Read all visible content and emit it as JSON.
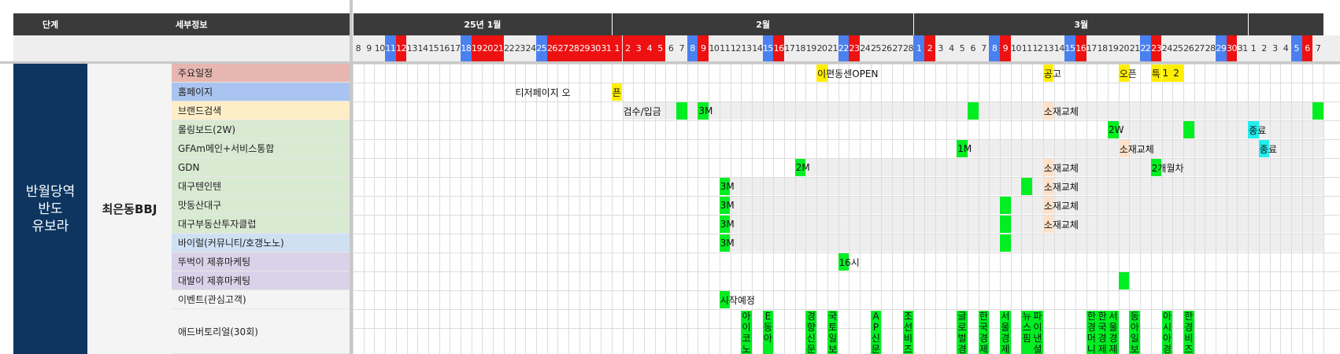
{
  "header": {
    "stage_label": "단계",
    "detail_label": "세부정보",
    "months": [
      {
        "label": "25년 1월",
        "startDay": 8,
        "endDay": 31
      },
      {
        "label": "2월",
        "startDay": 1,
        "endDay": 28
      },
      {
        "label": "3월",
        "startDay": 1,
        "endDay": 31
      },
      {
        "label": "",
        "startDay": 1,
        "endDay": 7
      }
    ]
  },
  "day_colors": {
    "blue": "#4a80f0",
    "red": "#ee1111",
    "green": "#00ee22",
    "yellow": "#ffee00",
    "cyan": "#22eeee",
    "peach": "#ffe0c8",
    "span_gray": "#eeeeee"
  },
  "weekend_map": {
    "blue": [
      3,
      10,
      17,
      24,
      31,
      38,
      45,
      52,
      59,
      66,
      73,
      80,
      87
    ],
    "red": [
      4,
      11,
      18,
      19,
      20,
      21,
      22,
      23,
      24,
      25,
      26,
      27,
      28,
      32,
      39,
      46,
      53,
      60,
      67,
      74,
      81,
      88,
      12,
      13
    ]
  },
  "stage": {
    "text": "반월당역\n반도\n유보라"
  },
  "detail": {
    "text": "최은동BBJ"
  },
  "rows": [
    {
      "label": "주요일정",
      "bg": "#e8b6b0"
    },
    {
      "label": "홈페이지",
      "bg": "#a9c4f0"
    },
    {
      "label": "브랜드검색",
      "bg": "#fdeec8"
    },
    {
      "label": "롤링보드(2W)",
      "bg": "#d9ead3"
    },
    {
      "label": "GFAm메인+서비스통합",
      "bg": "#d9ead3"
    },
    {
      "label": "GDN",
      "bg": "#d9ead3"
    },
    {
      "label": "대구텐인텐",
      "bg": "#d9ead3"
    },
    {
      "label": "맛동산대구",
      "bg": "#d9ead3"
    },
    {
      "label": "대구부동산투자클럽",
      "bg": "#d9ead3"
    },
    {
      "label": "바이럴(커뮤니티/호갱노노)",
      "bg": "#cfe0f3"
    },
    {
      "label": "뚜벅이 제휴마케팅",
      "bg": "#d9d2e9"
    },
    {
      "label": "대발이 제휴마케팅",
      "bg": "#d9d2e9"
    },
    {
      "label": "이벤트(관심고객)",
      "bg": "#f4f4f4"
    },
    {
      "label": "애드버토리얼(30회)",
      "bg": "#f4f4f4"
    }
  ],
  "spans": [
    {
      "row": 2,
      "from": 25,
      "to": 90
    },
    {
      "row": 3,
      "from": 70,
      "to": 90
    },
    {
      "row": 4,
      "from": 56,
      "to": 90
    },
    {
      "row": 5,
      "from": 41,
      "to": 90
    },
    {
      "row": 6,
      "from": 34,
      "to": 90
    },
    {
      "row": 7,
      "from": 34,
      "to": 90
    },
    {
      "row": 8,
      "from": 34,
      "to": 90
    },
    {
      "row": 9,
      "from": 34,
      "to": 90
    }
  ],
  "cells": [
    {
      "row": 0,
      "day": 43,
      "color": "yellow",
      "text": "이편동센OPEN"
    },
    {
      "row": 0,
      "day": 64,
      "color": "yellow",
      "text": "공고"
    },
    {
      "row": 0,
      "day": 71,
      "color": "yellow",
      "text": "오픈"
    },
    {
      "row": 0,
      "day": 74,
      "color": "yellow",
      "text": "특"
    },
    {
      "row": 0,
      "day": 75,
      "color": "yellow",
      "text": "1"
    },
    {
      "row": 0,
      "day": 76,
      "color": "yellow",
      "text": "2"
    },
    {
      "row": 1,
      "day": 15,
      "color": "",
      "text": "티저페이지 오"
    },
    {
      "row": 1,
      "day": 24,
      "color": "yellow",
      "text": "픈"
    },
    {
      "row": 2,
      "day": 25,
      "color": "",
      "text": "검수/입금"
    },
    {
      "row": 2,
      "day": 30,
      "color": "green",
      "text": ""
    },
    {
      "row": 2,
      "day": 32,
      "color": "green",
      "text": "3M"
    },
    {
      "row": 2,
      "day": 57,
      "color": "green",
      "text": ""
    },
    {
      "row": 2,
      "day": 64,
      "color": "peach",
      "text": "소재교체"
    },
    {
      "row": 2,
      "day": 89,
      "color": "green",
      "text": ""
    },
    {
      "row": 3,
      "day": 70,
      "color": "green",
      "text": "2W"
    },
    {
      "row": 3,
      "day": 77,
      "color": "green",
      "text": ""
    },
    {
      "row": 3,
      "day": 83,
      "color": "cyan",
      "text": "종료"
    },
    {
      "row": 4,
      "day": 56,
      "color": "green",
      "text": "1M"
    },
    {
      "row": 4,
      "day": 71,
      "color": "peach",
      "text": "소재교체"
    },
    {
      "row": 4,
      "day": 84,
      "color": "cyan",
      "text": "종료"
    },
    {
      "row": 5,
      "day": 41,
      "color": "green",
      "text": "2M"
    },
    {
      "row": 5,
      "day": 64,
      "color": "peach",
      "text": "소재교체"
    },
    {
      "row": 5,
      "day": 74,
      "color": "green",
      "text": "2개월차"
    },
    {
      "row": 6,
      "day": 34,
      "color": "green",
      "text": "3M"
    },
    {
      "row": 6,
      "day": 62,
      "color": "green",
      "text": ""
    },
    {
      "row": 6,
      "day": 64,
      "color": "peach",
      "text": "소재교체"
    },
    {
      "row": 7,
      "day": 34,
      "color": "green",
      "text": "3M"
    },
    {
      "row": 7,
      "day": 60,
      "color": "green",
      "text": ""
    },
    {
      "row": 7,
      "day": 64,
      "color": "peach",
      "text": "소재교체"
    },
    {
      "row": 8,
      "day": 34,
      "color": "green",
      "text": "3M"
    },
    {
      "row": 8,
      "day": 60,
      "color": "green",
      "text": ""
    },
    {
      "row": 8,
      "day": 64,
      "color": "peach",
      "text": "소재교체"
    },
    {
      "row": 9,
      "day": 34,
      "color": "green",
      "text": "3M"
    },
    {
      "row": 9,
      "day": 60,
      "color": "green",
      "text": ""
    },
    {
      "row": 10,
      "day": 45,
      "color": "green",
      "text": "16시"
    },
    {
      "row": 11,
      "day": 71,
      "color": "green",
      "text": ""
    },
    {
      "row": 12,
      "day": 34,
      "color": "green",
      "text": "시작예정"
    }
  ],
  "advertorials": [
    {
      "day": 36,
      "text": "아이코노미"
    },
    {
      "day": 38,
      "text": "E동아"
    },
    {
      "day": 42,
      "text": "경향신문"
    },
    {
      "day": 44,
      "text": "국토일보"
    },
    {
      "day": 48,
      "text": "AP신문"
    },
    {
      "day": 51,
      "text": "조선비즈"
    },
    {
      "day": 56,
      "text": "글로벌경"
    },
    {
      "day": 58,
      "text": "한국경제"
    },
    {
      "day": 60,
      "text": "서울경제"
    },
    {
      "day": 62,
      "text": "뉴스핌"
    },
    {
      "day": 63,
      "text": "파이낸셜"
    },
    {
      "day": 68,
      "text": "한경머니"
    },
    {
      "day": 69,
      "text": "한국경제"
    },
    {
      "day": 70,
      "text": "서울경제"
    },
    {
      "day": 72,
      "text": "동아일보"
    },
    {
      "day": 75,
      "text": "아시아경"
    },
    {
      "day": 77,
      "text": "한경비즈"
    }
  ]
}
